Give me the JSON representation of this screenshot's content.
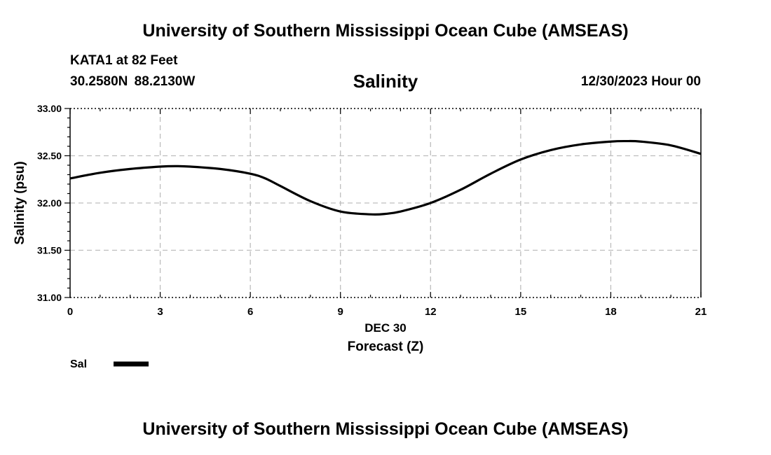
{
  "header": {
    "title": "University of Southern Mississippi Ocean Cube (AMSEAS)",
    "station": "KATA1 at 82 Feet",
    "coords": "30.2580N  88.2130W",
    "parameter": "Salinity",
    "datetime": "12/30/2023 Hour 00"
  },
  "footer": {
    "title": "University of Southern Mississippi Ocean Cube (AMSEAS)"
  },
  "chart_data": {
    "type": "line",
    "xlabel": "Forecast (Z)",
    "xsublabel": "DEC 30",
    "ylabel": "Salinity (psu)",
    "xlim": [
      0,
      21
    ],
    "ylim": [
      31.0,
      33.0
    ],
    "xticks": [
      "0",
      "3",
      "6",
      "9",
      "12",
      "15",
      "18",
      "21"
    ],
    "yticks": [
      "31.00",
      "31.50",
      "32.00",
      "32.50",
      "33.00"
    ],
    "grid": true,
    "legend_position": "bottom-left",
    "series": [
      {
        "name": "Sal",
        "color": "#000000",
        "x": [
          0,
          1,
          2,
          3,
          3.5,
          4,
          5,
          6,
          6.5,
          7,
          8,
          9,
          10,
          10.5,
          11,
          12,
          13,
          14,
          15,
          16,
          17,
          18,
          18.5,
          19,
          20,
          21
        ],
        "y": [
          32.26,
          32.32,
          32.36,
          32.385,
          32.39,
          32.385,
          32.36,
          32.31,
          32.26,
          32.18,
          32.02,
          31.91,
          31.88,
          31.885,
          31.91,
          32.0,
          32.14,
          32.31,
          32.46,
          32.56,
          32.62,
          32.65,
          32.655,
          32.65,
          32.61,
          32.52
        ]
      }
    ]
  }
}
